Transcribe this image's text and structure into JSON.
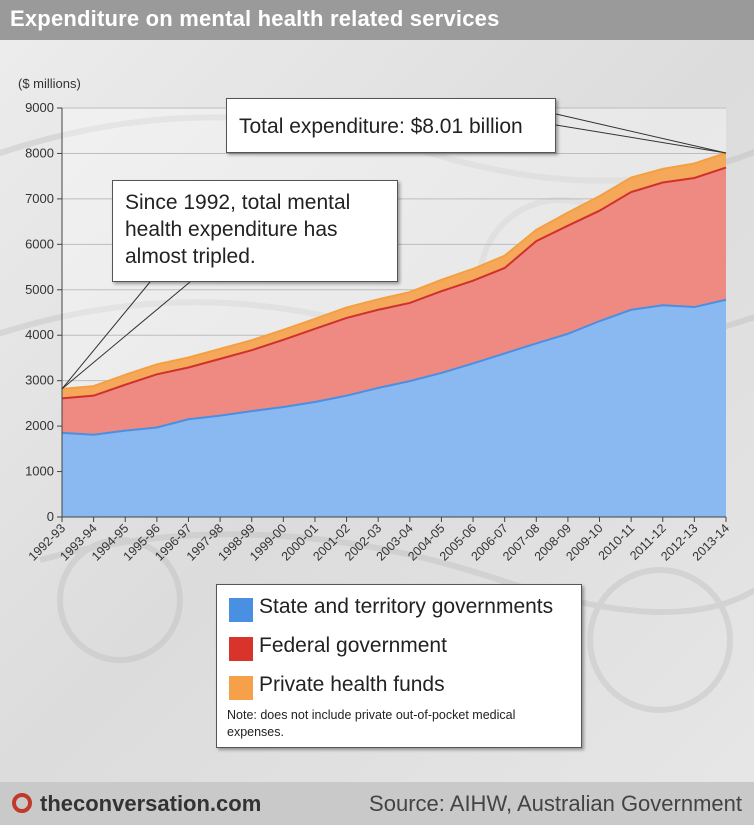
{
  "title": "Expenditure on mental health related services",
  "colors": {
    "state": "#8ab8f0",
    "federal": "#ef8a82",
    "private": "#f5a85a",
    "state_line": "#4a90e2",
    "federal_line": "#d0312d",
    "private_line": "#f5a040",
    "legend_state": "#4a90e2",
    "legend_federal": "#d9342b",
    "legend_private": "#f7a04c"
  },
  "callouts": {
    "total": "Total expenditure: $8.01 billion",
    "since": "Since 1992, total mental health expenditure has almost tripled."
  },
  "legend": {
    "items": [
      {
        "label": "State and territory governments",
        "color_key": "legend_state"
      },
      {
        "label": "Federal government",
        "color_key": "legend_federal"
      },
      {
        "label": "Private health funds",
        "color_key": "legend_private"
      }
    ],
    "note": "Note: does not include private out-of-pocket medical expenses."
  },
  "footer": {
    "brand": "theconversation.com",
    "source": "Source: AIHW, Australian Government"
  },
  "chart_data": {
    "type": "area",
    "stacked": true,
    "title": "Expenditure on mental health related services",
    "ylabel": "($ millions)",
    "xlabel": "",
    "ylim": [
      0,
      9000
    ],
    "yticks": [
      0,
      1000,
      2000,
      3000,
      4000,
      5000,
      6000,
      7000,
      8000,
      9000
    ],
    "grid": true,
    "legend_position": "bottom",
    "categories": [
      "1992-93",
      "1993-94",
      "1994-95",
      "1995-96",
      "1996-97",
      "1997-98",
      "1998-99",
      "1999-00",
      "2000-01",
      "2001-02",
      "2002-03",
      "2003-04",
      "2004-05",
      "2005-06",
      "2006-07",
      "2007-08",
      "2008-09",
      "2009-10",
      "2010-11",
      "2011-12",
      "2012-13",
      "2013-14"
    ],
    "series": [
      {
        "name": "State and territory governments",
        "values": [
          1850,
          1810,
          1900,
          1970,
          2150,
          2230,
          2330,
          2420,
          2530,
          2670,
          2840,
          2990,
          3170,
          3380,
          3600,
          3820,
          4030,
          4310,
          4560,
          4660,
          4620,
          4780
        ]
      },
      {
        "name": "Federal government",
        "values": [
          760,
          860,
          1010,
          1170,
          1140,
          1250,
          1340,
          1480,
          1610,
          1710,
          1720,
          1720,
          1800,
          1820,
          1880,
          2250,
          2380,
          2430,
          2590,
          2700,
          2840,
          2910
        ]
      },
      {
        "name": "Private health funds",
        "values": [
          210,
          210,
          220,
          220,
          220,
          220,
          220,
          220,
          220,
          230,
          230,
          240,
          250,
          260,
          270,
          250,
          290,
          320,
          320,
          300,
          320,
          320
        ]
      }
    ],
    "annotations": [
      "Total expenditure: $8.01 billion",
      "Since 1992, total mental health expenditure has almost tripled."
    ]
  }
}
